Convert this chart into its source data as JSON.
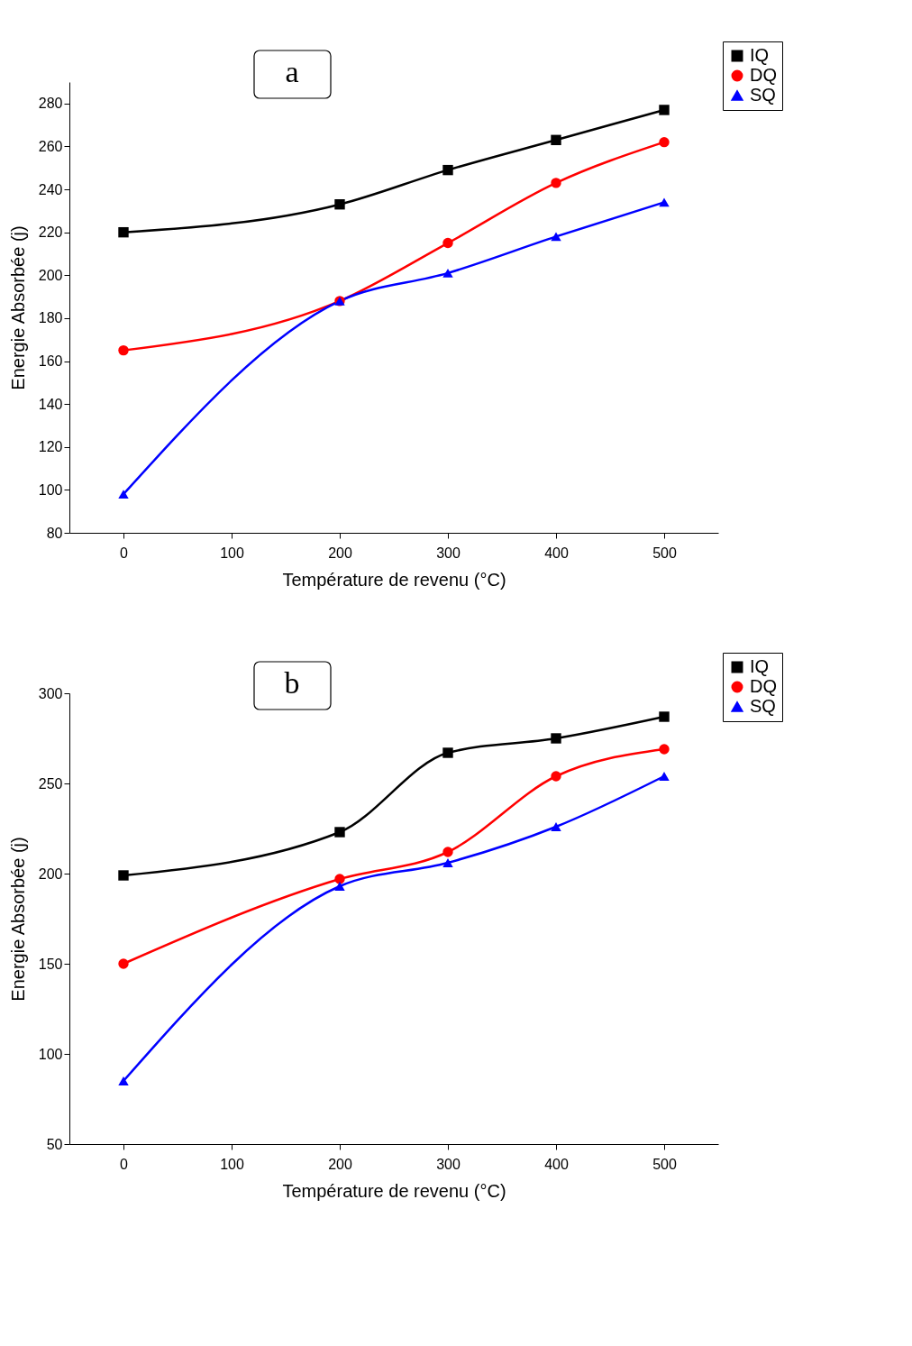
{
  "chart_data": [
    {
      "type": "line",
      "annotations": [
        "a"
      ],
      "xlabel": "Température de revenu (°C)",
      "ylabel": "Energie Absorbée (j)",
      "x": [
        0,
        200,
        300,
        400,
        500
      ],
      "xlim": [
        -50,
        550
      ],
      "xticks": [
        0,
        100,
        200,
        300,
        400,
        500
      ],
      "ylim": [
        80,
        290
      ],
      "yticks": [
        80,
        100,
        120,
        140,
        160,
        180,
        200,
        220,
        240,
        260,
        280
      ],
      "grid": false,
      "legend": "top right",
      "series": [
        {
          "name": "IQ",
          "color": "#000000",
          "marker": "square",
          "values": [
            220,
            233,
            249,
            263,
            277
          ]
        },
        {
          "name": "DQ",
          "color": "#ff0000",
          "marker": "circle",
          "values": [
            165,
            188,
            215,
            243,
            262
          ]
        },
        {
          "name": "SQ",
          "color": "#0000ff",
          "marker": "triangle",
          "values": [
            98,
            188,
            201,
            218,
            234
          ]
        }
      ]
    },
    {
      "type": "line",
      "annotations": [
        "b"
      ],
      "xlabel": "Température de revenu (°C)",
      "ylabel": "Energie Absorbée (j)",
      "x": [
        0,
        200,
        300,
        400,
        500
      ],
      "xlim": [
        -50,
        550
      ],
      "xticks": [
        0,
        100,
        200,
        300,
        400,
        500
      ],
      "ylim": [
        50,
        300
      ],
      "yticks": [
        50,
        100,
        150,
        200,
        250,
        300
      ],
      "grid": false,
      "legend": "top right",
      "series": [
        {
          "name": "IQ",
          "color": "#000000",
          "marker": "square",
          "values": [
            199,
            223,
            267,
            275,
            287
          ]
        },
        {
          "name": "DQ",
          "color": "#ff0000",
          "marker": "circle",
          "values": [
            150,
            197,
            212,
            254,
            269
          ]
        },
        {
          "name": "SQ",
          "color": "#0000ff",
          "marker": "triangle",
          "values": [
            85,
            193,
            206,
            226,
            254
          ]
        }
      ]
    }
  ]
}
